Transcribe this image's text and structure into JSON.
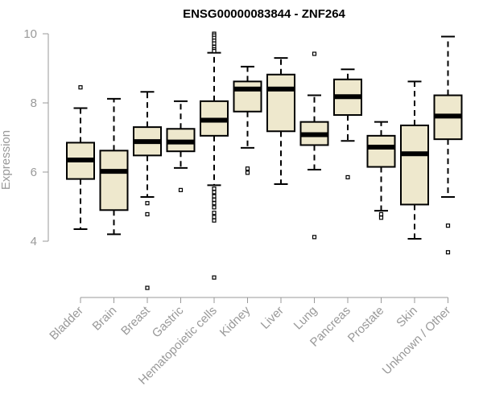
{
  "chart_data": {
    "type": "boxplot",
    "title": "ENSG00000083844 - ZNF264",
    "ylabel": "Expression",
    "ylim": [
      3,
      10
    ],
    "yticks": [
      4,
      6,
      8,
      10
    ],
    "grid": false,
    "box_color": "#EEE8CD",
    "categories": [
      "Bladder",
      "Brain",
      "Breast",
      "Gastric",
      "Hematopoietic cells",
      "Kidney",
      "Liver",
      "Lung",
      "Pancreas",
      "Prostate",
      "Skin",
      "Unknown / Other"
    ],
    "boxes": [
      {
        "whisker_low": 4.35,
        "q1": 5.8,
        "median": 6.35,
        "q3": 6.85,
        "whisker_high": 7.85,
        "outliers": [
          8.45
        ]
      },
      {
        "whisker_low": 4.2,
        "q1": 4.9,
        "median": 6.02,
        "q3": 6.62,
        "whisker_high": 8.12,
        "outliers": []
      },
      {
        "whisker_low": 5.28,
        "q1": 6.48,
        "median": 6.88,
        "q3": 7.3,
        "whisker_high": 8.32,
        "outliers": [
          5.1,
          4.78,
          2.65
        ]
      },
      {
        "whisker_low": 6.12,
        "q1": 6.6,
        "median": 6.87,
        "q3": 7.25,
        "whisker_high": 8.05,
        "outliers": [
          5.48
        ]
      },
      {
        "whisker_low": 5.62,
        "q1": 7.05,
        "median": 7.5,
        "q3": 8.05,
        "whisker_high": 9.45,
        "outliers": [
          10.0,
          9.95,
          9.88,
          9.8,
          9.72,
          9.62,
          9.55,
          9.5,
          5.52,
          5.42,
          5.3,
          5.2,
          5.1,
          4.98,
          4.82,
          4.7,
          4.6,
          2.95
        ]
      },
      {
        "whisker_low": 6.7,
        "q1": 7.75,
        "median": 8.4,
        "q3": 8.62,
        "whisker_high": 9.05,
        "outliers": [
          6.1,
          5.98
        ]
      },
      {
        "whisker_low": 5.65,
        "q1": 7.18,
        "median": 8.4,
        "q3": 8.82,
        "whisker_high": 9.3,
        "outliers": []
      },
      {
        "whisker_low": 6.07,
        "q1": 6.78,
        "median": 7.08,
        "q3": 7.45,
        "whisker_high": 8.22,
        "outliers": [
          9.42,
          4.12
        ]
      },
      {
        "whisker_low": 6.9,
        "q1": 7.65,
        "median": 8.18,
        "q3": 8.68,
        "whisker_high": 8.97,
        "outliers": [
          5.85
        ]
      },
      {
        "whisker_low": 4.88,
        "q1": 6.15,
        "median": 6.72,
        "q3": 7.05,
        "whisker_high": 7.45,
        "outliers": [
          4.78,
          4.68
        ]
      },
      {
        "whisker_low": 4.07,
        "q1": 5.06,
        "median": 6.53,
        "q3": 7.35,
        "whisker_high": 8.62,
        "outliers": []
      },
      {
        "whisker_low": 5.28,
        "q1": 6.95,
        "median": 7.62,
        "q3": 8.22,
        "whisker_high": 9.92,
        "outliers": [
          4.45,
          3.68
        ]
      }
    ]
  }
}
